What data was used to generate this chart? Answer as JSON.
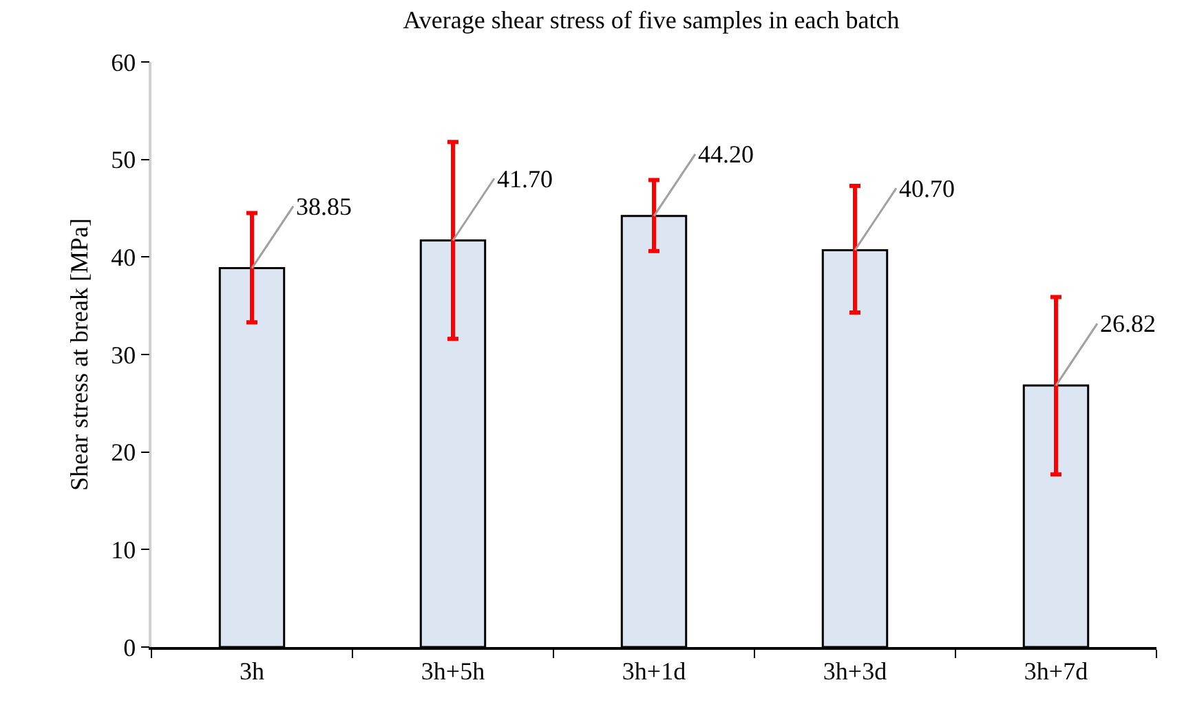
{
  "chart_data": {
    "type": "bar",
    "title": "Average shear stress of five samples in each batch",
    "ylabel": "Shear stress at break [MPa]",
    "categories": [
      "3h",
      "3h+5h",
      "3h+1d",
      "3h+3d",
      "3h+7d"
    ],
    "values": [
      38.85,
      41.7,
      44.2,
      40.7,
      26.82
    ],
    "value_labels": [
      "38.85",
      "41.70",
      "44.20",
      "40.70",
      "26.82"
    ],
    "errors": [
      [
        33.3,
        44.5
      ],
      [
        31.6,
        51.8
      ],
      [
        40.6,
        47.9
      ],
      [
        34.3,
        47.3
      ],
      [
        17.7,
        35.9
      ]
    ],
    "color": "#dce6f2",
    "ylim": [
      0,
      60
    ],
    "yticks": [
      0,
      10,
      20,
      30,
      40,
      50,
      60
    ],
    "grid": false,
    "legend": false
  }
}
